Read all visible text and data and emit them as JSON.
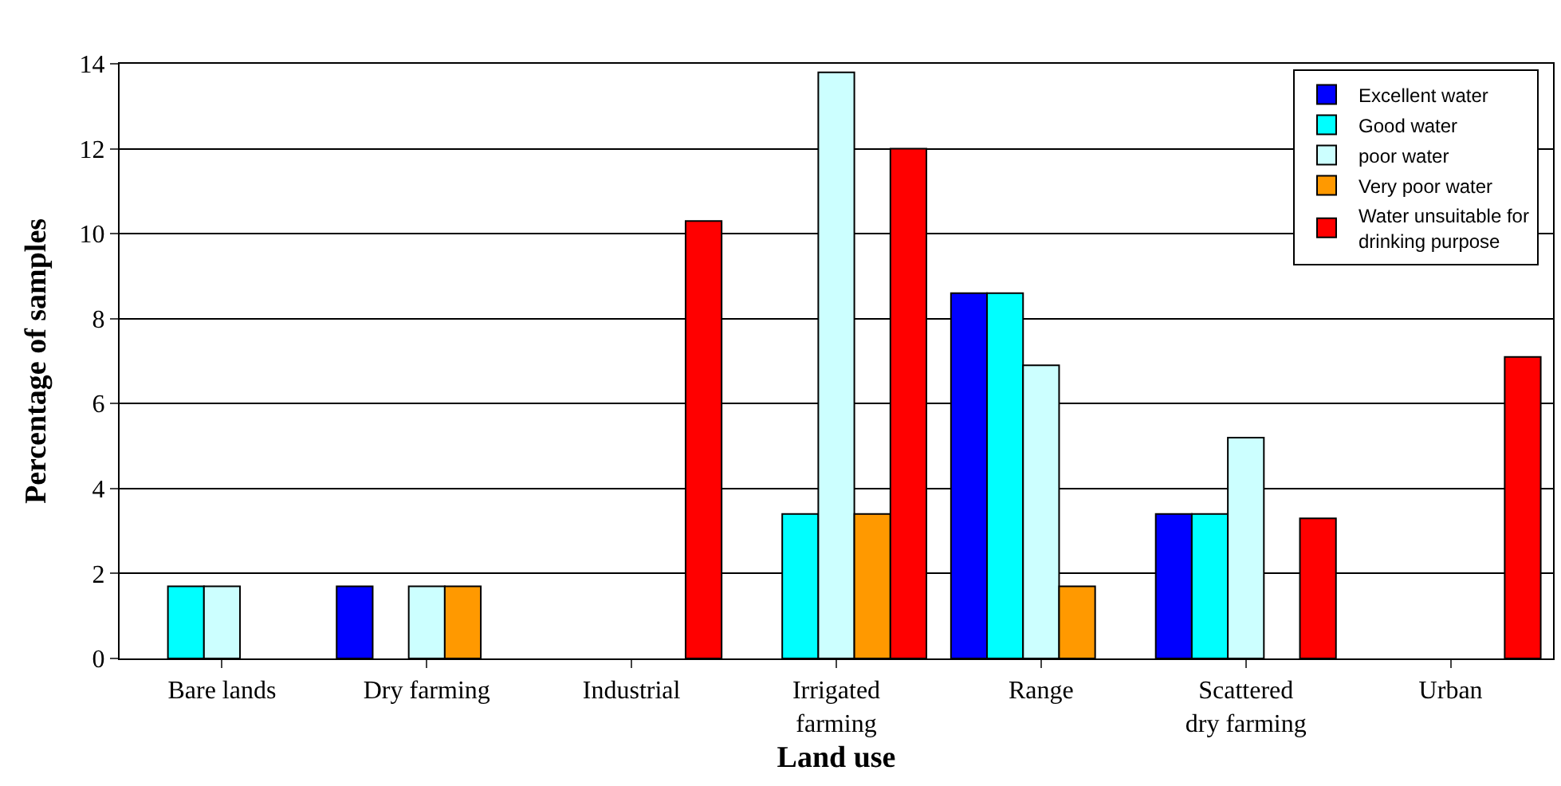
{
  "chart_data": {
    "type": "bar",
    "xlabel": "Land use",
    "ylabel": "Percentage of samples",
    "categories": [
      "Bare lands",
      "Dry farming",
      "Industrial",
      "Irrigated farming",
      "Range",
      "Scattered dry farming",
      "Urban"
    ],
    "series": [
      {
        "name": "Excellent water",
        "color": "#0000ff",
        "values": [
          null,
          1.7,
          null,
          null,
          8.6,
          3.4,
          null
        ]
      },
      {
        "name": "Good water",
        "color": "#00ffff",
        "values": [
          1.7,
          null,
          null,
          3.4,
          8.6,
          3.4,
          null
        ]
      },
      {
        "name": "poor water",
        "color": "#ccffff",
        "values": [
          1.7,
          1.7,
          null,
          13.8,
          6.9,
          5.2,
          null
        ]
      },
      {
        "name": "Very poor water",
        "color": "#ff9900",
        "values": [
          null,
          1.7,
          null,
          3.4,
          1.7,
          null,
          null
        ]
      },
      {
        "name": "Water unsuitable for drinking purpose",
        "color": "#ff0000",
        "values": [
          null,
          null,
          10.3,
          12.0,
          null,
          3.3,
          7.1
        ]
      }
    ],
    "ylim": [
      0,
      14
    ],
    "yticks": [
      0,
      2,
      4,
      6,
      8,
      10,
      12,
      14
    ],
    "grid": "y",
    "legend": "top right"
  }
}
